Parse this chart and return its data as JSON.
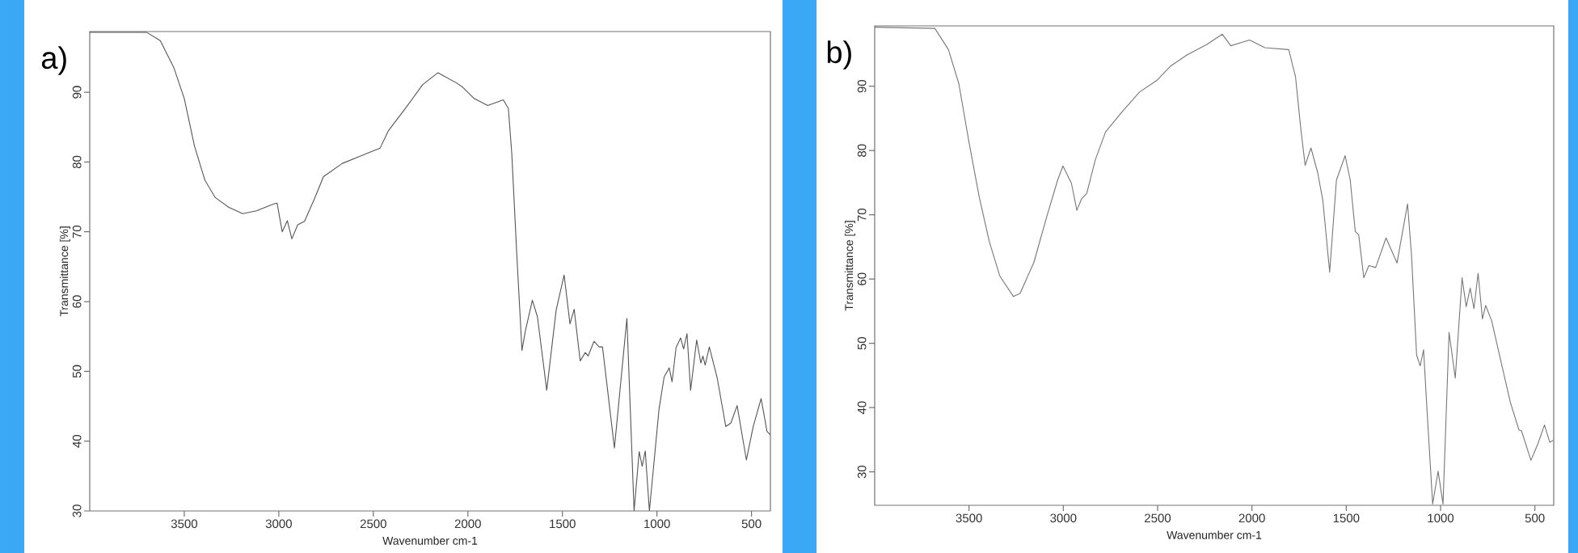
{
  "chart_data": [
    {
      "type": "line",
      "title": "a)",
      "xlabel": "Wavenumber cm-1",
      "ylabel": "Transmittance [%]",
      "color": "#555555",
      "marker": "none",
      "xlim": [
        4000,
        400
      ],
      "ylim": [
        30,
        98.7
      ],
      "xticks": [
        3500,
        3000,
        2500,
        2000,
        1500,
        1000,
        500
      ],
      "yticks": [
        30,
        40,
        50,
        60,
        70,
        80,
        90
      ],
      "x": [
        4000,
        3700,
        3627,
        3555,
        3500,
        3446,
        3391,
        3336,
        3264,
        3191,
        3118,
        3027,
        3009,
        2982,
        2955,
        2931,
        2900,
        2864,
        2809,
        2764,
        2664,
        2573,
        2518,
        2464,
        2420,
        2330,
        2239,
        2158,
        2058,
        2031,
        1967,
        1895,
        1813,
        1786,
        1768,
        1741,
        1714,
        1696,
        1659,
        1632,
        1583,
        1533,
        1491,
        1460,
        1438,
        1406,
        1379,
        1364,
        1333,
        1306,
        1288,
        1225,
        1159,
        1121,
        1094,
        1078,
        1062,
        1040,
        989,
        962,
        935,
        920,
        899,
        875,
        859,
        841,
        822,
        790,
        768,
        757,
        745,
        723,
        681,
        636,
        609,
        576,
        527,
        491,
        449,
        418,
        400
      ],
      "values": [
        98.6,
        98.6,
        97.4,
        93.5,
        89.1,
        82.3,
        77.4,
        74.9,
        73.5,
        72.6,
        73.0,
        74.0,
        74.1,
        70.0,
        71.6,
        69.0,
        71.0,
        71.5,
        74.9,
        77.9,
        79.8,
        80.8,
        81.4,
        82.0,
        84.5,
        87.7,
        91.1,
        92.8,
        91.3,
        90.8,
        89.1,
        88.1,
        88.9,
        87.7,
        81.3,
        66.6,
        53.0,
        55.8,
        60.2,
        57.8,
        47.3,
        58.8,
        63.8,
        56.8,
        58.9,
        51.5,
        52.7,
        52.2,
        54.3,
        53.5,
        53.5,
        39.0,
        57.6,
        30.0,
        38.5,
        36.4,
        38.6,
        30.0,
        44.6,
        49.2,
        50.5,
        48.5,
        53.4,
        54.8,
        53.2,
        55.4,
        47.3,
        54.5,
        51.2,
        52.2,
        50.9,
        53.5,
        49.0,
        42.1,
        42.6,
        45.1,
        37.3,
        42.1,
        46.1,
        41.4,
        40.9
      ]
    },
    {
      "type": "line",
      "title": "b)",
      "xlabel": "Wavenumber cm-1",
      "ylabel": "Transmittance [%]",
      "color": "#777777",
      "marker": "none",
      "xlim": [
        4000,
        400
      ],
      "ylim": [
        24.8,
        99.4
      ],
      "xticks": [
        3500,
        3000,
        2500,
        2000,
        1500,
        1000,
        500
      ],
      "yticks": [
        30,
        40,
        50,
        60,
        70,
        80,
        90
      ],
      "x": [
        4000,
        3681,
        3609,
        3554,
        3500,
        3446,
        3392,
        3337,
        3265,
        3229,
        3156,
        3084,
        3030,
        3002,
        2957,
        2928,
        2903,
        2876,
        2830,
        2776,
        2686,
        2596,
        2505,
        2433,
        2343,
        2239,
        2157,
        2112,
        2013,
        1931,
        1805,
        1769,
        1741,
        1718,
        1687,
        1651,
        1624,
        1588,
        1552,
        1506,
        1479,
        1452,
        1434,
        1407,
        1380,
        1344,
        1289,
        1231,
        1175,
        1154,
        1127,
        1108,
        1090,
        1072,
        1042,
        1013,
        987,
        955,
        922,
        886,
        864,
        843,
        823,
        801,
        778,
        761,
        729,
        684,
        629,
        584,
        571,
        521,
        485,
        449,
        421,
        403
      ],
      "values": [
        99.2,
        99.0,
        95.7,
        90.4,
        81.3,
        72.8,
        65.8,
        60.5,
        57.3,
        57.8,
        62.6,
        70.1,
        75.4,
        77.6,
        74.9,
        70.7,
        72.5,
        73.3,
        78.6,
        82.9,
        86.1,
        89.1,
        90.9,
        93.1,
        94.9,
        96.5,
        98.1,
        96.3,
        97.2,
        96.0,
        95.7,
        91.5,
        83.4,
        77.7,
        80.4,
        76.5,
        72.2,
        61.1,
        75.4,
        79.2,
        75.4,
        67.4,
        66.9,
        60.2,
        62.1,
        61.8,
        66.4,
        62.5,
        71.7,
        63.7,
        48.2,
        46.5,
        49.0,
        39.7,
        25.0,
        30.1,
        25.0,
        51.7,
        44.6,
        60.2,
        55.7,
        58.6,
        55.4,
        60.9,
        53.8,
        55.9,
        53.5,
        47.7,
        40.7,
        36.5,
        36.4,
        31.8,
        34.3,
        37.3,
        34.6,
        34.9
      ]
    }
  ]
}
